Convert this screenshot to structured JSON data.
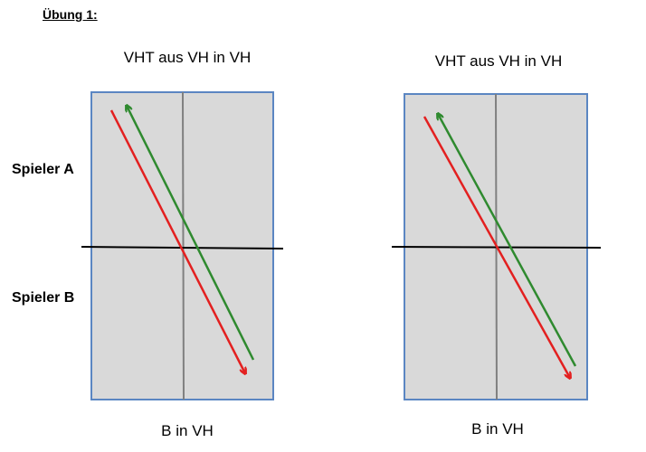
{
  "title": "Übung 1:",
  "players": {
    "a": "Spieler A",
    "b": "Spieler B"
  },
  "panels": [
    {
      "heading": "VHT aus VH in VH",
      "footer": "B in VH"
    },
    {
      "heading": "VHT aus VH in VH",
      "footer": "B in VH"
    }
  ],
  "colors": {
    "court_fill": "#d9d9d9",
    "court_border": "#5b86c2",
    "center_line": "#808080",
    "net_line": "#000000",
    "return_arrow": "#e32020",
    "play_arrow": "#2f8a2f"
  }
}
